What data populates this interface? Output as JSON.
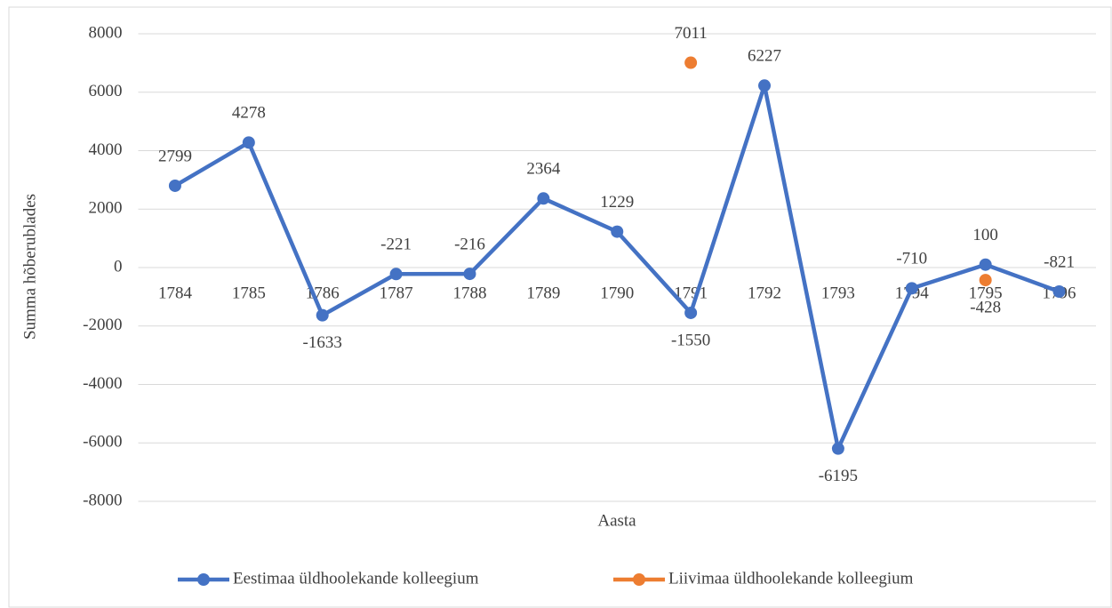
{
  "chart_data": {
    "type": "line",
    "x_label": "Aasta",
    "y_label": "Summa hõberublades",
    "categories": [
      "1784",
      "1785",
      "1786",
      "1787",
      "1788",
      "1789",
      "1790",
      "1791",
      "1792",
      "1793",
      "1794",
      "1795",
      "1796"
    ],
    "series": [
      {
        "name": "Eestimaa üldhoolekande kolleegium",
        "color": "#4472c4",
        "values": [
          2799,
          4278,
          -1633,
          -221,
          -216,
          2364,
          1229,
          -1550,
          6227,
          -6195,
          -710,
          100,
          -821
        ]
      },
      {
        "name": "Liivimaa üldhoolekande kolleegium",
        "color": "#ed7d31",
        "values": [
          null,
          null,
          null,
          null,
          null,
          null,
          null,
          7011,
          null,
          null,
          null,
          -428,
          null
        ]
      }
    ],
    "ylim": [
      -8000,
      8000
    ],
    "yticks": [
      -8000,
      -6000,
      -4000,
      -2000,
      0,
      2000,
      4000,
      6000,
      8000
    ],
    "grid": true,
    "legend": "bottom"
  }
}
